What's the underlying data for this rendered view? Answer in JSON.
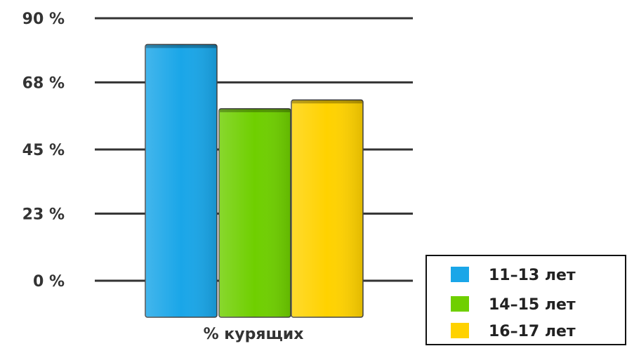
{
  "chart_data": {
    "type": "bar",
    "categories": [
      "% курящих"
    ],
    "series": [
      {
        "name": "11–13 лет",
        "values": [
          81
        ],
        "color": "#1aa6e8"
      },
      {
        "name": "14–15 лет",
        "values": [
          59
        ],
        "color": "#6fcf00"
      },
      {
        "name": "16–17 лет",
        "values": [
          62
        ],
        "color": "#ffd200"
      }
    ],
    "yticks": [
      {
        "value": 90,
        "label": "90 %"
      },
      {
        "value": 68,
        "label": "68 %"
      },
      {
        "value": 45,
        "label": "45 %"
      },
      {
        "value": 23,
        "label": "23 %"
      },
      {
        "value": 0,
        "label": "0 %"
      }
    ],
    "ylim": [
      0,
      90
    ],
    "grid": true,
    "legend_position": "bottom-right",
    "title": "",
    "xlabel": "",
    "ylabel": ""
  }
}
